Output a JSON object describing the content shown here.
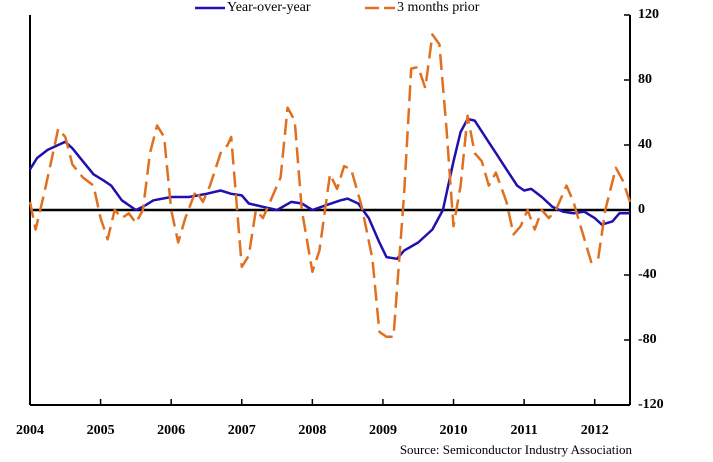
{
  "chart_data": {
    "type": "line",
    "source": "Source: Semiconductor Industry Association",
    "xlim": [
      2004,
      2012.5
    ],
    "xticks": [
      2004,
      2005,
      2006,
      2007,
      2008,
      2009,
      2010,
      2011,
      2012
    ],
    "ylim": [
      -120,
      120
    ],
    "yticks": [
      120,
      80,
      40,
      0,
      -40,
      -80,
      -120
    ],
    "series": [
      {
        "name": "Year-over-year",
        "color": "#2010b0",
        "dashed": false,
        "x": [
          2004.0,
          2004.1,
          2004.25,
          2004.4,
          2004.5,
          2004.6,
          2004.75,
          2004.9,
          2005.05,
          2005.15,
          2005.3,
          2005.4,
          2005.5,
          2005.6,
          2005.75,
          2006.0,
          2006.25,
          2006.5,
          2006.7,
          2006.85,
          2007.0,
          2007.1,
          2007.3,
          2007.5,
          2007.7,
          2007.85,
          2008.0,
          2008.2,
          2008.4,
          2008.5,
          2008.65,
          2008.8,
          2008.95,
          2009.05,
          2009.2,
          2009.3,
          2009.5,
          2009.7,
          2009.85,
          2010.0,
          2010.1,
          2010.2,
          2010.3,
          2010.45,
          2010.6,
          2010.75,
          2010.9,
          2011.0,
          2011.1,
          2011.25,
          2011.4,
          2011.55,
          2011.7,
          2011.85,
          2012.0,
          2012.1,
          2012.25,
          2012.35,
          2012.5
        ],
        "values": [
          25,
          32,
          37,
          40,
          42,
          38,
          30,
          22,
          18,
          15,
          6,
          3,
          0,
          2,
          6,
          8,
          8,
          10,
          12,
          10,
          9,
          4,
          2,
          0,
          5,
          4,
          0,
          3,
          6,
          7,
          4,
          -5,
          -20,
          -29,
          -30,
          -25,
          -20,
          -12,
          0,
          30,
          48,
          56,
          55,
          45,
          35,
          25,
          15,
          12,
          13,
          8,
          2,
          -1,
          -2,
          -1,
          -5,
          -9,
          -7,
          -2,
          -2
        ]
      },
      {
        "name": "3 months prior",
        "color": "#e07020",
        "dashed": true,
        "x": [
          2004.0,
          2004.08,
          2004.2,
          2004.3,
          2004.4,
          2004.5,
          2004.6,
          2004.75,
          2004.9,
          2005.0,
          2005.1,
          2005.2,
          2005.3,
          2005.4,
          2005.5,
          2005.6,
          2005.7,
          2005.8,
          2005.9,
          2006.0,
          2006.1,
          2006.2,
          2006.35,
          2006.45,
          2006.55,
          2006.7,
          2006.8,
          2006.85,
          2007.0,
          2007.1,
          2007.2,
          2007.3,
          2007.4,
          2007.55,
          2007.65,
          2007.75,
          2007.85,
          2008.0,
          2008.1,
          2008.25,
          2008.35,
          2008.45,
          2008.55,
          2008.7,
          2008.85,
          2008.95,
          2009.05,
          2009.15,
          2009.3,
          2009.4,
          2009.5,
          2009.6,
          2009.7,
          2009.8,
          2009.9,
          2010.0,
          2010.1,
          2010.2,
          2010.3,
          2010.4,
          2010.5,
          2010.6,
          2010.75,
          2010.85,
          2010.95,
          2011.05,
          2011.15,
          2011.25,
          2011.35,
          2011.45,
          2011.6,
          2011.7,
          2011.8,
          2011.95,
          2012.05,
          2012.15,
          2012.3,
          2012.4,
          2012.5
        ],
        "values": [
          5,
          -12,
          10,
          30,
          50,
          45,
          28,
          20,
          15,
          -5,
          -18,
          0,
          -5,
          -2,
          -8,
          0,
          35,
          52,
          45,
          0,
          -20,
          -5,
          12,
          5,
          15,
          35,
          40,
          45,
          -35,
          -28,
          0,
          -5,
          5,
          20,
          63,
          55,
          0,
          -38,
          -25,
          22,
          13,
          27,
          25,
          2,
          -30,
          -75,
          -78,
          -78,
          10,
          87,
          88,
          75,
          108,
          102,
          50,
          -10,
          15,
          58,
          35,
          30,
          15,
          23,
          5,
          -15,
          -10,
          0,
          -12,
          0,
          -5,
          0,
          15,
          5,
          -10,
          -32,
          -30,
          0,
          26,
          18,
          5
        ]
      }
    ]
  }
}
